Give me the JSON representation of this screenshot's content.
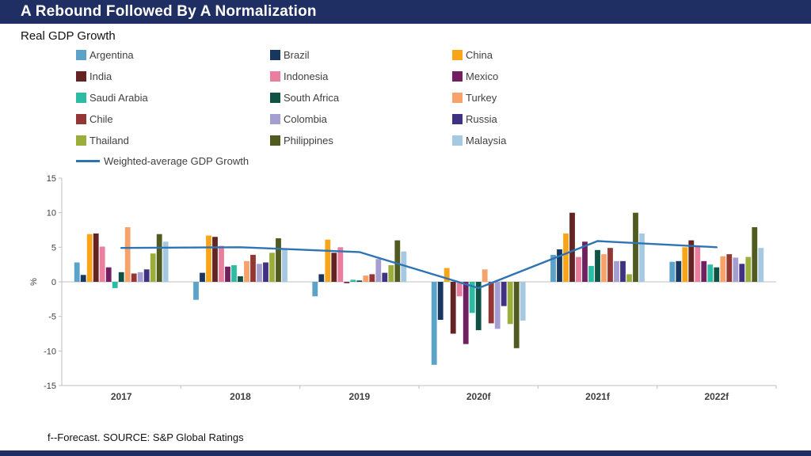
{
  "header": {
    "title": "A Rebound Followed By A Normalization",
    "bar_color": "#1F2F63"
  },
  "subtitle": "Real GDP Growth",
  "footer": {
    "note": "f--Forecast. SOURCE: S&P Global Ratings"
  },
  "chart_data": {
    "type": "bar",
    "title": "Real GDP Growth",
    "xlabel": "",
    "ylabel": "%",
    "ylim": [
      -15,
      15
    ],
    "yticks": [
      15,
      10,
      5,
      0,
      -5,
      -10,
      -15
    ],
    "grid": "zero-line-only",
    "legend_position": "top",
    "categories": [
      "2017",
      "2018",
      "2019",
      "2020f",
      "2021f",
      "2022f"
    ],
    "series": [
      {
        "name": "Argentina",
        "color": "#5BA3C9",
        "values": [
          2.8,
          -2.6,
          -2.1,
          -12.0,
          3.9,
          2.9
        ]
      },
      {
        "name": "Brazil",
        "color": "#17375E",
        "values": [
          1.0,
          1.3,
          1.1,
          -5.5,
          4.7,
          3.0
        ]
      },
      {
        "name": "China",
        "color": "#F9A51A",
        "values": [
          6.9,
          6.7,
          6.1,
          2.0,
          7.0,
          5.0
        ]
      },
      {
        "name": "India",
        "color": "#632423",
        "values": [
          7.0,
          6.5,
          4.2,
          -7.5,
          10.0,
          6.0
        ]
      },
      {
        "name": "Indonesia",
        "color": "#E97E9F",
        "values": [
          5.1,
          5.2,
          5.0,
          -2.1,
          3.6,
          5.2
        ]
      },
      {
        "name": "Mexico",
        "color": "#702060",
        "values": [
          2.1,
          2.2,
          -0.2,
          -9.0,
          5.8,
          3.0
        ]
      },
      {
        "name": "Saudi Arabia",
        "color": "#2CBCA4",
        "values": [
          -0.9,
          2.4,
          0.3,
          -4.5,
          2.3,
          2.5
        ]
      },
      {
        "name": "South Africa",
        "color": "#0E5346",
        "values": [
          1.4,
          0.8,
          0.2,
          -7.0,
          4.6,
          2.1
        ]
      },
      {
        "name": "Turkey",
        "color": "#F8A26B",
        "values": [
          7.9,
          3.0,
          0.9,
          1.8,
          4.0,
          3.7
        ]
      },
      {
        "name": "Chile",
        "color": "#943634",
        "values": [
          1.2,
          3.9,
          1.1,
          -6.0,
          4.9,
          4.0
        ]
      },
      {
        "name": "Colombia",
        "color": "#A59FD1",
        "values": [
          1.4,
          2.6,
          3.3,
          -6.8,
          3.0,
          3.5
        ]
      },
      {
        "name": "Russia",
        "color": "#403182",
        "values": [
          1.8,
          2.8,
          1.3,
          -3.5,
          3.0,
          2.6
        ]
      },
      {
        "name": "Thailand",
        "color": "#9BAE3C",
        "values": [
          4.1,
          4.2,
          2.4,
          -6.1,
          1.1,
          3.6
        ]
      },
      {
        "name": "Philippines",
        "color": "#4F5B1F",
        "values": [
          6.9,
          6.3,
          6.0,
          -9.6,
          10.0,
          7.9
        ]
      },
      {
        "name": "Malaysia",
        "color": "#A6C9E2",
        "values": [
          5.8,
          4.8,
          4.4,
          -5.6,
          7.0,
          4.9
        ]
      }
    ],
    "line_series": {
      "name": "Weighted-average GDP Growth",
      "color": "#2E74B5",
      "values": [
        4.9,
        5.0,
        4.3,
        -0.9,
        5.9,
        5.0
      ]
    }
  }
}
